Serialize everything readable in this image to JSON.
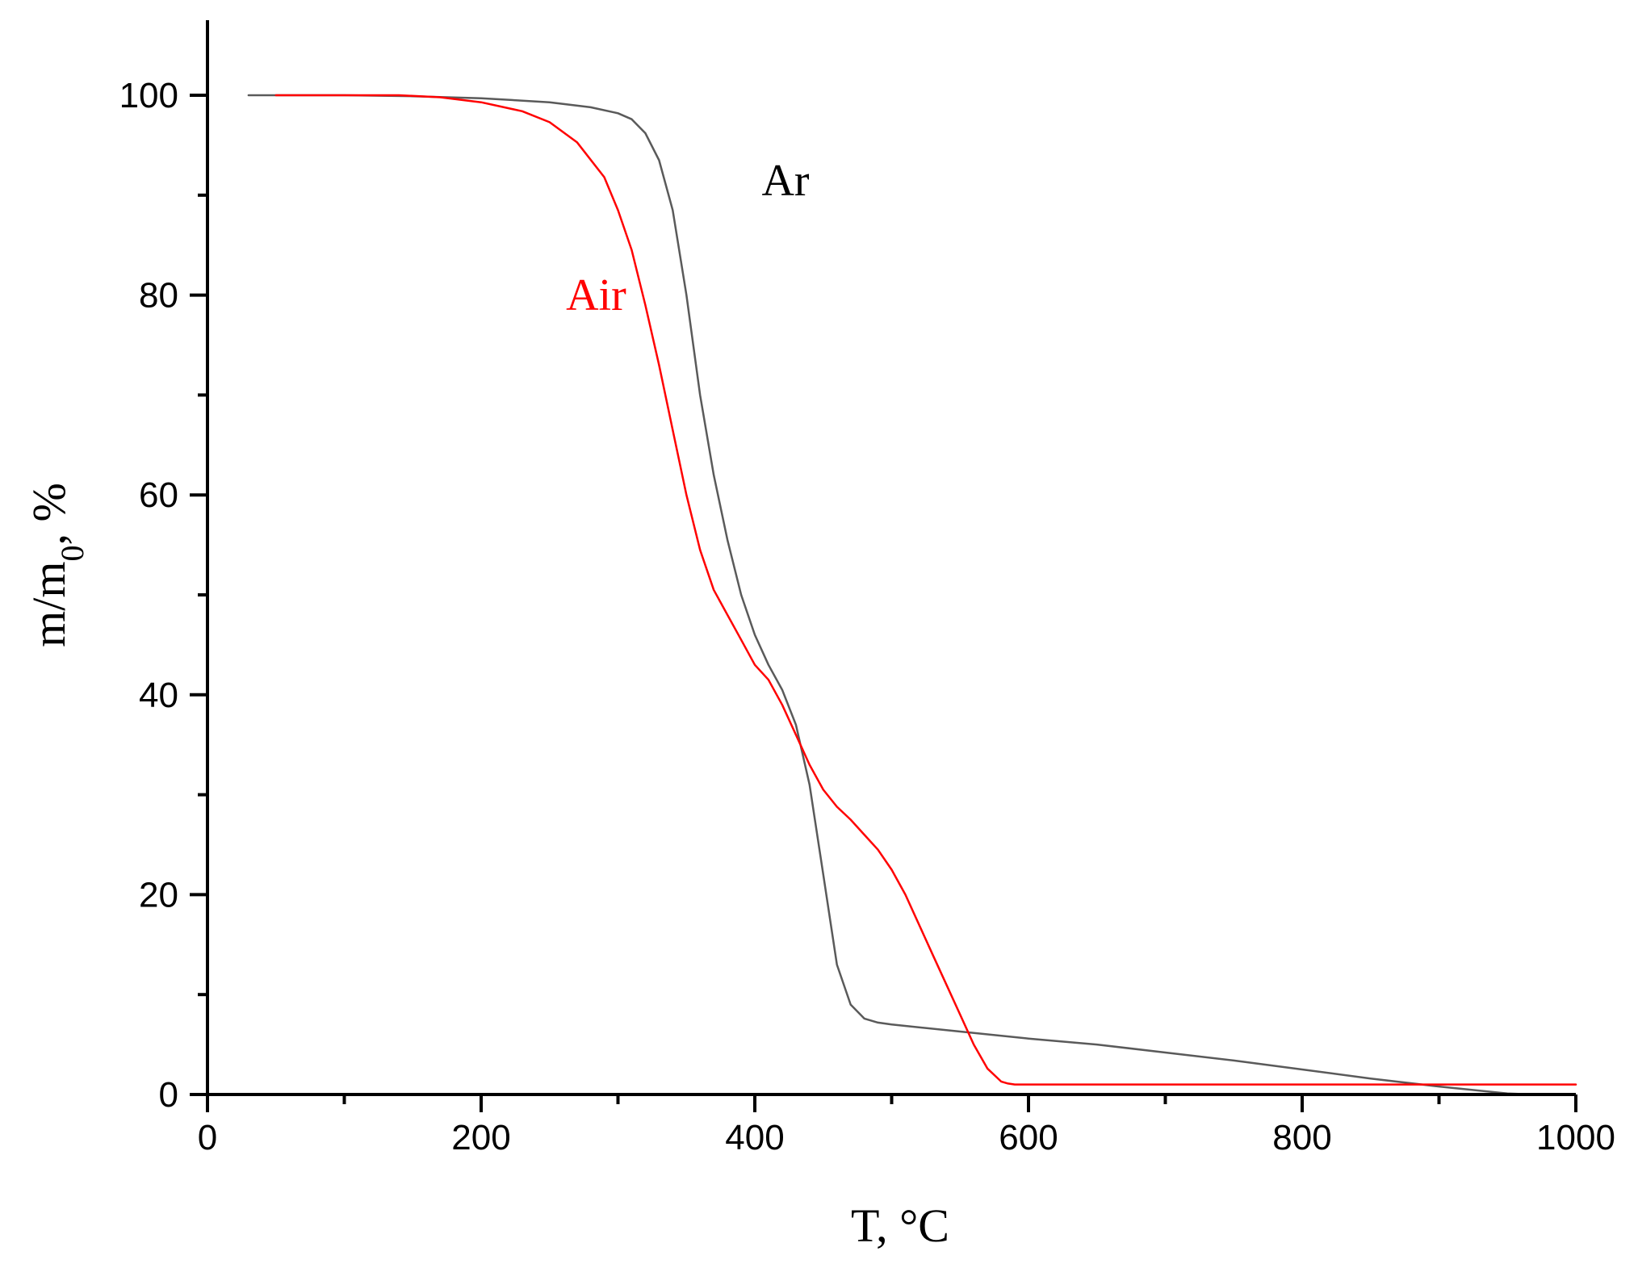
{
  "chart_data": {
    "type": "line",
    "title": "",
    "xlabel": "T, °C",
    "ylabel": {
      "main": "m/m",
      "subscript": "0",
      "suffix": ", %"
    },
    "xlim": [
      0,
      1000
    ],
    "ylim": [
      0,
      100
    ],
    "x_ticks": [
      0,
      200,
      400,
      600,
      800,
      1000
    ],
    "y_ticks": [
      0,
      20,
      40,
      60,
      80,
      100
    ],
    "x_tick_labels": [
      "0",
      "200",
      "400",
      "600",
      "800",
      "1000"
    ],
    "y_tick_labels": [
      "0",
      "20",
      "40",
      "60",
      "80",
      "100"
    ],
    "grid": false,
    "legend": "inline labels",
    "series": [
      {
        "name": "Ar",
        "color": "#5a5a5a",
        "x": [
          30,
          100,
          150,
          200,
          250,
          280,
          300,
          310,
          320,
          330,
          340,
          350,
          360,
          370,
          380,
          390,
          400,
          410,
          420,
          430,
          440,
          450,
          460,
          470,
          480,
          490,
          500,
          550,
          600,
          650,
          700,
          750,
          800,
          850,
          900,
          950,
          970
        ],
        "y": [
          100,
          100,
          99.9,
          99.7,
          99.3,
          98.8,
          98.2,
          97.6,
          96.2,
          93.5,
          88.5,
          80,
          70,
          62,
          55.5,
          50,
          46,
          43,
          40.5,
          37,
          31,
          22,
          13,
          9,
          7.6,
          7.2,
          7,
          6.3,
          5.6,
          5,
          4.2,
          3.4,
          2.5,
          1.6,
          0.8,
          0.1,
          0
        ]
      },
      {
        "name": "Air",
        "color": "#ff0000",
        "x": [
          50,
          100,
          140,
          170,
          200,
          230,
          250,
          270,
          290,
          300,
          310,
          320,
          330,
          340,
          350,
          360,
          370,
          380,
          390,
          400,
          410,
          420,
          430,
          440,
          450,
          460,
          470,
          480,
          490,
          500,
          510,
          520,
          530,
          540,
          550,
          560,
          570,
          580,
          585,
          590,
          600,
          700,
          800,
          900,
          1000
        ],
        "y": [
          100,
          100,
          100,
          99.8,
          99.3,
          98.4,
          97.3,
          95.3,
          91.8,
          88.5,
          84.5,
          79,
          73,
          66.5,
          60,
          54.5,
          50.5,
          48,
          45.5,
          43,
          41.5,
          39,
          36,
          33,
          30.5,
          28.8,
          27.5,
          26,
          24.5,
          22.5,
          20,
          17,
          14,
          11,
          8,
          5,
          2.6,
          1.3,
          1.1,
          1,
          1,
          1,
          1,
          1,
          1
        ]
      }
    ],
    "annotations": [
      {
        "text": "Ar",
        "x": 405,
        "y": 90,
        "color": "#000000"
      },
      {
        "text": "Air",
        "x": 262,
        "y": 78.5,
        "color": "#ff0000"
      }
    ]
  }
}
